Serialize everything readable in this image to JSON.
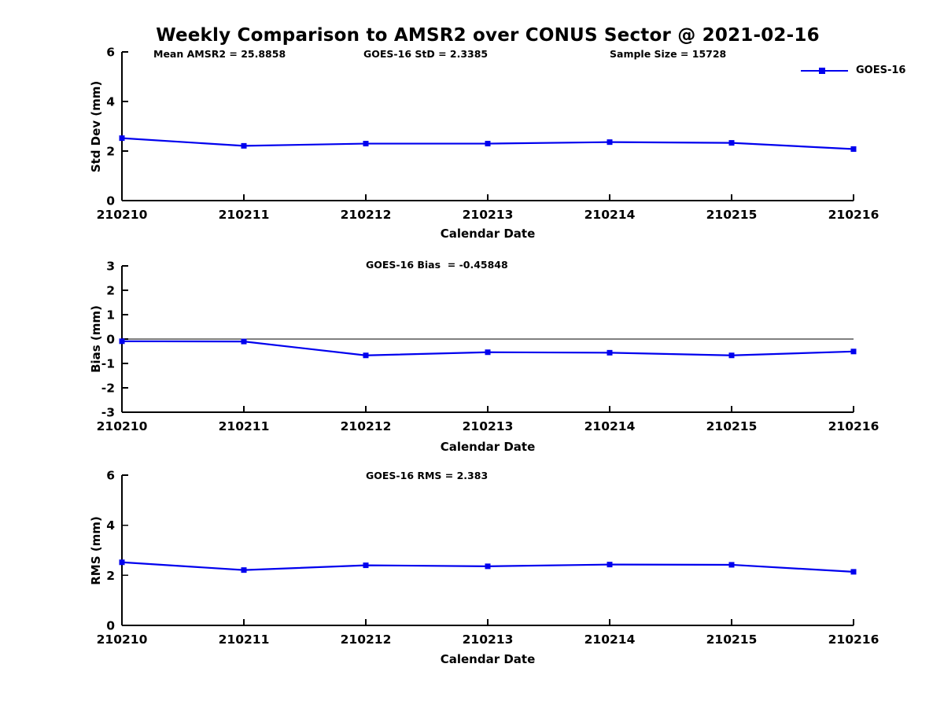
{
  "page_title": "Weekly Comparison to AMSR2 over CONUS Sector @ 2021-02-16",
  "header_annotations": {
    "mean_amsr2": "Mean AMSR2 = 25.8858",
    "goes16_std": "GOES-16 StD = 2.3385",
    "sample_size": "Sample Size = 15728"
  },
  "legend": {
    "label": "GOES-16",
    "position": "top-right"
  },
  "colors": {
    "series": "#0000EE",
    "axis": "#000000",
    "text": "#000000",
    "background": "#FFFFFF"
  },
  "chart_data": [
    {
      "type": "line",
      "id": "std-dev",
      "title": "",
      "xlabel": "Calendar Date",
      "ylabel": "Std Dev (mm)",
      "categories": [
        "210210",
        "210211",
        "210212",
        "210213",
        "210214",
        "210215",
        "210216"
      ],
      "series": [
        {
          "name": "GOES-16",
          "color": "#0000EE",
          "marker": "square",
          "values": [
            2.52,
            2.21,
            2.3,
            2.3,
            2.36,
            2.33,
            2.08
          ]
        }
      ],
      "ylim": [
        0,
        6
      ],
      "y_ticks": [
        0,
        2,
        4,
        6
      ],
      "grid": false,
      "zero_line": false,
      "legend_position": "top-right"
    },
    {
      "type": "line",
      "id": "bias",
      "title": "GOES-16 Bias  = -0.45848",
      "xlabel": "Calendar Date",
      "ylabel": "Bias (mm)",
      "categories": [
        "210210",
        "210211",
        "210212",
        "210213",
        "210214",
        "210215",
        "210216"
      ],
      "series": [
        {
          "name": "GOES-16",
          "color": "#0000EE",
          "marker": "square",
          "values": [
            -0.09,
            -0.1,
            -0.67,
            -0.54,
            -0.56,
            -0.67,
            -0.51
          ]
        }
      ],
      "ylim": [
        -3,
        3
      ],
      "y_ticks": [
        -3,
        -2,
        -1,
        0,
        1,
        2,
        3
      ],
      "grid": false,
      "zero_line": true,
      "legend_position": "none"
    },
    {
      "type": "line",
      "id": "rms",
      "title": "GOES-16 RMS = 2.383",
      "xlabel": "Calendar Date",
      "ylabel": "RMS (mm)",
      "categories": [
        "210210",
        "210211",
        "210212",
        "210213",
        "210214",
        "210215",
        "210216"
      ],
      "series": [
        {
          "name": "GOES-16",
          "color": "#0000EE",
          "marker": "square",
          "values": [
            2.52,
            2.21,
            2.4,
            2.36,
            2.43,
            2.42,
            2.14
          ]
        }
      ],
      "ylim": [
        0,
        6
      ],
      "y_ticks": [
        0,
        2,
        4,
        6
      ],
      "grid": false,
      "zero_line": false,
      "legend_position": "none"
    }
  ]
}
